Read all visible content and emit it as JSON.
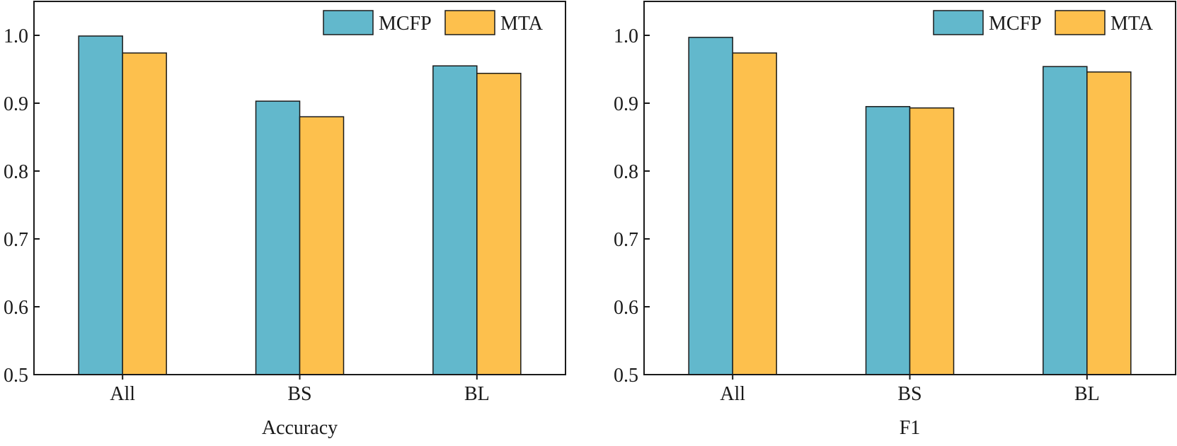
{
  "chart_data": [
    {
      "type": "bar",
      "title": "",
      "xlabel": "Accuracy",
      "ylabel": "",
      "ylim": [
        0.5,
        1.05
      ],
      "yticks": [
        0.5,
        0.6,
        0.7,
        0.8,
        0.9,
        1.0
      ],
      "ytick_labels": [
        "0.5",
        "0.6",
        "0.7",
        "0.8",
        "0.9",
        "1.0"
      ],
      "categories": [
        "All",
        "BS",
        "BL"
      ],
      "series": [
        {
          "name": "MCFP",
          "color": "#62B8CC",
          "values": [
            0.999,
            0.903,
            0.955
          ]
        },
        {
          "name": "MTA",
          "color": "#FDC04D",
          "values": [
            0.974,
            0.88,
            0.944
          ]
        }
      ],
      "legend": "top-right",
      "grid": false
    },
    {
      "type": "bar",
      "title": "",
      "xlabel": "F1",
      "ylabel": "",
      "ylim": [
        0.5,
        1.05
      ],
      "yticks": [
        0.5,
        0.6,
        0.7,
        0.8,
        0.9,
        1.0
      ],
      "ytick_labels": [
        "0.5",
        "0.6",
        "0.7",
        "0.8",
        "0.9",
        "1.0"
      ],
      "categories": [
        "All",
        "BS",
        "BL"
      ],
      "series": [
        {
          "name": "MCFP",
          "color": "#62B8CC",
          "values": [
            0.997,
            0.895,
            0.954
          ]
        },
        {
          "name": "MTA",
          "color": "#FDC04D",
          "values": [
            0.974,
            0.893,
            0.946
          ]
        }
      ],
      "legend": "top-right",
      "grid": false
    }
  ]
}
